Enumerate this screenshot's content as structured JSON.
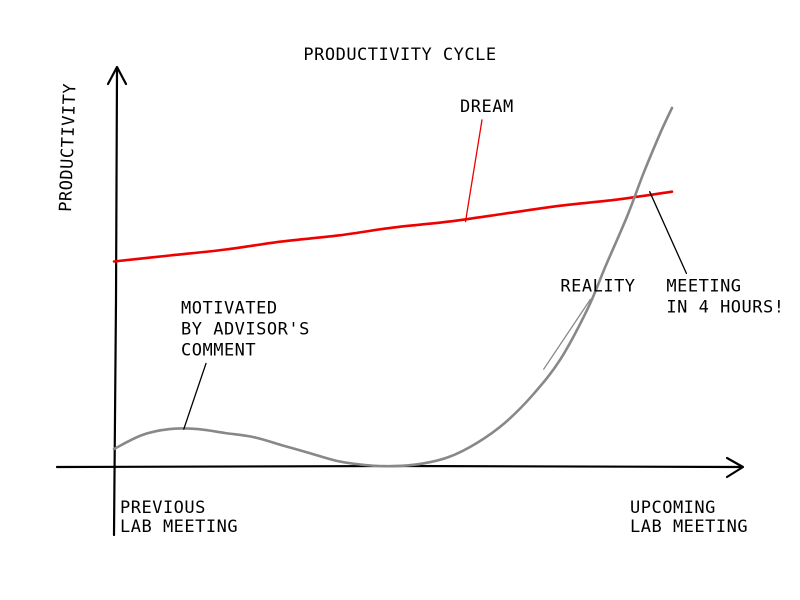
{
  "chart_data": {
    "type": "line",
    "title": "PRODUCTIVITY CYCLE",
    "ylabel": "PRODUCTIVITY",
    "xlabel": "",
    "x_start_label": [
      "PREVIOUS",
      "LAB MEETING"
    ],
    "x_end_label": [
      "UPCOMING",
      "LAB MEETING"
    ],
    "grid": false,
    "xlim": [
      0,
      1
    ],
    "ylim": [
      0,
      1
    ],
    "series": [
      {
        "name": "DREAM",
        "color": "#ee0000",
        "x": [
          0,
          0.1,
          0.2,
          0.3,
          0.4,
          0.5,
          0.6,
          0.7,
          0.8,
          0.9,
          1.0
        ],
        "y": [
          0.515,
          0.53,
          0.545,
          0.565,
          0.58,
          0.6,
          0.615,
          0.635,
          0.655,
          0.67,
          0.69
        ]
      },
      {
        "name": "REALITY",
        "color": "#888888",
        "x": [
          0,
          0.05,
          0.1,
          0.15,
          0.2,
          0.25,
          0.3,
          0.35,
          0.4,
          0.45,
          0.5,
          0.55,
          0.6,
          0.65,
          0.7,
          0.75,
          0.8,
          0.85,
          0.88,
          0.92,
          0.95,
          0.98,
          1.0
        ],
        "y": [
          0.045,
          0.08,
          0.095,
          0.095,
          0.085,
          0.075,
          0.055,
          0.035,
          0.015,
          0.005,
          0.002,
          0.008,
          0.025,
          0.06,
          0.11,
          0.18,
          0.27,
          0.4,
          0.5,
          0.63,
          0.74,
          0.84,
          0.9
        ]
      }
    ],
    "annotations": [
      {
        "id": "dream",
        "lines": [
          "DREAM"
        ],
        "color": "#ee0000",
        "text_x": 0.62,
        "text_y": 0.89,
        "arrow_x": 0.63,
        "arrow_y": 0.615
      },
      {
        "id": "reality",
        "lines": [
          "REALITY"
        ],
        "color": "#888888",
        "text_x": 0.8,
        "text_y": 0.44,
        "arrow_x": 0.77,
        "arrow_y": 0.245
      },
      {
        "id": "motivated",
        "lines": [
          "MOTIVATED",
          "BY ADVISOR'S",
          "COMMENT"
        ],
        "color": "#000000",
        "text_x": 0.12,
        "text_y": 0.385,
        "arrow_x": 0.125,
        "arrow_y": 0.095
      },
      {
        "id": "meeting",
        "lines": [
          "MEETING",
          "IN 4 HOURS!"
        ],
        "color": "#000000",
        "text_x": 0.99,
        "text_y": 0.44,
        "arrow_x": 0.96,
        "arrow_y": 0.69
      }
    ]
  }
}
